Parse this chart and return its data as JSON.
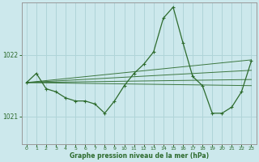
{
  "title": "Graphe pression niveau de la mer (hPa)",
  "background_color": "#cce8ec",
  "grid_color": "#b0d4d8",
  "line_color": "#2d6b2d",
  "marker_color": "#2d6b2d",
  "xlim": [
    -0.5,
    23.5
  ],
  "ylim": [
    1020.55,
    1022.85
  ],
  "yticks": [
    1021,
    1022
  ],
  "xticks": [
    0,
    1,
    2,
    3,
    4,
    5,
    6,
    7,
    8,
    9,
    10,
    11,
    12,
    13,
    14,
    15,
    16,
    17,
    18,
    19,
    20,
    21,
    22,
    23
  ],
  "series": [
    {
      "x": [
        0,
        1,
        2,
        3,
        4,
        5,
        6,
        7,
        8,
        9,
        10,
        11,
        12,
        13,
        14,
        15,
        16,
        17,
        18,
        19,
        20,
        21,
        22,
        23
      ],
      "y": [
        1021.55,
        1021.7,
        1021.45,
        1021.4,
        1021.3,
        1021.25,
        1021.25,
        1021.2,
        1021.05,
        1021.25,
        1021.5,
        1021.7,
        1021.85,
        1022.05,
        1022.6,
        1022.78,
        1022.2,
        1021.65,
        1021.5,
        1021.05,
        1021.05,
        1021.15,
        1021.4,
        1021.9
      ]
    },
    {
      "x": [
        0,
        23
      ],
      "y": [
        1021.55,
        1021.5
      ]
    },
    {
      "x": [
        0,
        23
      ],
      "y": [
        1021.55,
        1021.6
      ]
    },
    {
      "x": [
        0,
        23
      ],
      "y": [
        1021.55,
        1021.75
      ]
    },
    {
      "x": [
        0,
        23
      ],
      "y": [
        1021.55,
        1021.92
      ]
    }
  ]
}
